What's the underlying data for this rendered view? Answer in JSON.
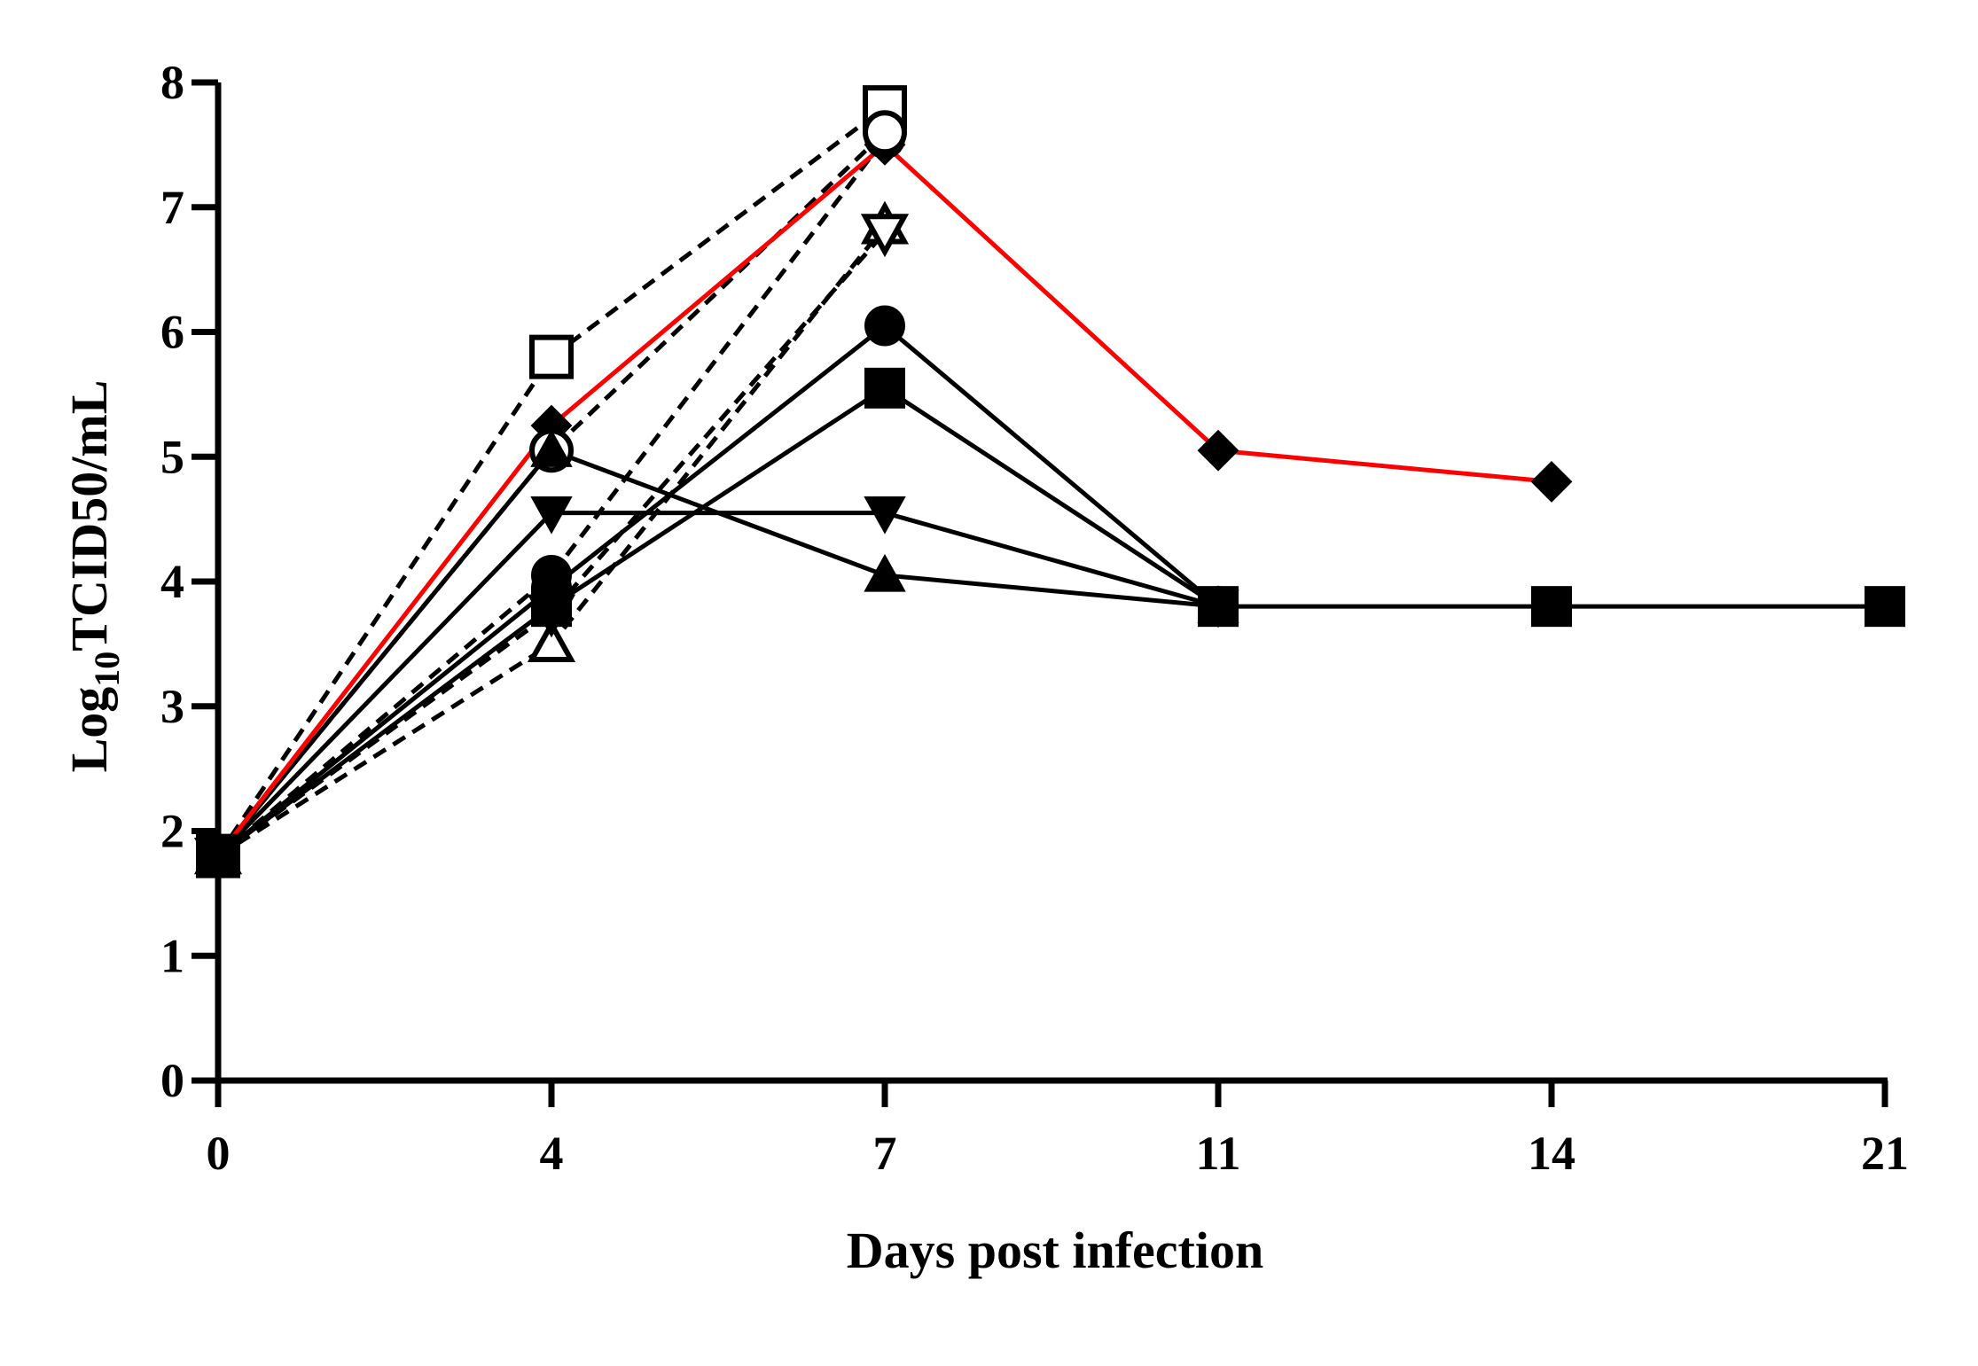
{
  "chart_data": {
    "type": "line",
    "xlabel": "Days post infection",
    "ylabel_prefix": "Log",
    "ylabel_sub": "10",
    "ylabel_suffix": "TCID50/mL",
    "x_categories": [
      "0",
      "4",
      "7",
      "11",
      "14",
      "21"
    ],
    "ylim": [
      0,
      8
    ],
    "yticks": [
      "0",
      "1",
      "2",
      "3",
      "4",
      "5",
      "6",
      "7",
      "8"
    ],
    "grid": false,
    "colors": {
      "axis": "#000000",
      "highlight": "#ff0000",
      "series": "#000000"
    },
    "series": [
      {
        "marker": "diamond-filled",
        "style": "solid",
        "color": "#ff0000",
        "x": [
          "0",
          "4",
          "7",
          "11",
          "14"
        ],
        "y": [
          1.8,
          5.25,
          7.5,
          5.05,
          4.8
        ]
      },
      {
        "marker": "square-open",
        "style": "dashed",
        "color": "#000000",
        "x": [
          "0",
          "4",
          "7"
        ],
        "y": [
          1.8,
          5.8,
          7.8
        ]
      },
      {
        "marker": "circle-filled",
        "style": "dashed",
        "color": "#000000",
        "x": [
          "0",
          "4",
          "7"
        ],
        "y": [
          1.8,
          4.05,
          7.55
        ]
      },
      {
        "marker": "triangle-up-open",
        "style": "dashed",
        "color": "#000000",
        "x": [
          "0",
          "4",
          "7"
        ],
        "y": [
          1.8,
          3.5,
          6.85
        ]
      },
      {
        "marker": "triangle-down-open",
        "style": "dashed",
        "color": "#000000",
        "x": [
          "0",
          "4",
          "7"
        ],
        "y": [
          1.8,
          3.75,
          6.8
        ]
      },
      {
        "marker": "circle-open",
        "style": "dashed",
        "color": "#000000",
        "x": [
          "0",
          "4",
          "7"
        ],
        "y": [
          1.8,
          5.05,
          7.6
        ]
      },
      {
        "marker": "circle-filled",
        "style": "solid",
        "color": "#000000",
        "x": [
          "0",
          "4",
          "7",
          "11"
        ],
        "y": [
          1.8,
          3.95,
          6.05,
          3.8
        ]
      },
      {
        "marker": "square-filled",
        "style": "solid",
        "color": "#000000",
        "x": [
          "0",
          "4",
          "7",
          "11",
          "14",
          "21"
        ],
        "y": [
          1.8,
          3.8,
          5.55,
          3.8,
          3.8,
          3.8
        ]
      },
      {
        "marker": "triangle-down-filled",
        "style": "solid",
        "color": "#000000",
        "x": [
          "0",
          "4",
          "7",
          "11"
        ],
        "y": [
          1.8,
          4.55,
          4.55,
          3.8
        ]
      },
      {
        "marker": "triangle-up-filled",
        "style": "solid",
        "color": "#000000",
        "x": [
          "0",
          "4",
          "7",
          "11"
        ],
        "y": [
          1.8,
          5.05,
          4.05,
          3.8
        ]
      }
    ]
  }
}
